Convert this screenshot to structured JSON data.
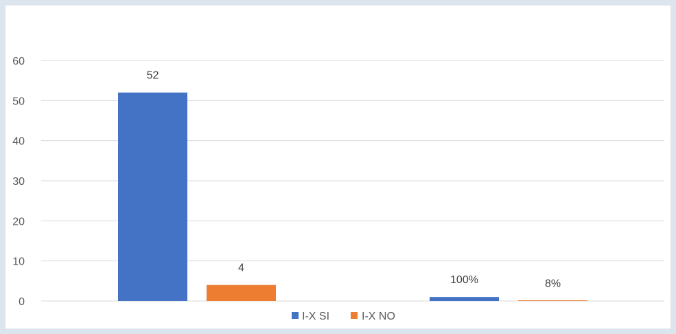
{
  "chart_data": {
    "type": "bar",
    "ylim": [
      0,
      60
    ],
    "yticks": [
      0,
      10,
      20,
      30,
      40,
      50,
      60
    ],
    "grid": true,
    "legend": "bottom",
    "series": [
      {
        "name": "I-X SI",
        "color": "#4472C4",
        "values": [
          52,
          1
        ],
        "data_labels": [
          "52",
          "100%"
        ]
      },
      {
        "name": "I-X NO",
        "color": "#ED7D31",
        "values": [
          4,
          0.08
        ],
        "data_labels": [
          "4",
          "8%"
        ]
      }
    ]
  },
  "colors": {
    "frame": "#DCE5EE",
    "panel": "#FFFFFF",
    "grid": "#D9D9D9"
  }
}
